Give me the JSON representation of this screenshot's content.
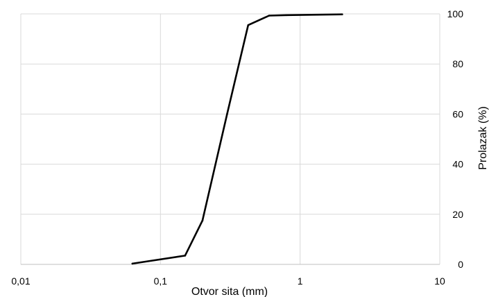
{
  "chart_data": {
    "type": "line",
    "title": "",
    "xlabel": "Otvor sita (mm)",
    "ylabel": "Prolazak (%)",
    "x_scale": "log",
    "xlim": [
      0.01,
      10
    ],
    "ylim": [
      0,
      100
    ],
    "x_ticks": [
      0.01,
      0.1,
      1,
      10
    ],
    "x_tick_labels": [
      "0,01",
      "0,1",
      "1",
      "10"
    ],
    "y_ticks": [
      0,
      20,
      40,
      60,
      80,
      100
    ],
    "y_tick_labels": [
      "0",
      "20",
      "40",
      "60",
      "80",
      "100"
    ],
    "y_axis_side": "right",
    "grid": true,
    "legend": "none",
    "colors": {
      "line": "#000000",
      "grid": "#d9d9d9",
      "axis": "#bfbfbf"
    },
    "series": [
      {
        "x": [
          0.063,
          0.15,
          0.2,
          0.3,
          0.425,
          0.6,
          0.8,
          2
        ],
        "y": [
          0.3,
          3.5,
          17.5,
          60,
          95.5,
          99.3,
          99.5,
          99.8
        ]
      }
    ]
  }
}
